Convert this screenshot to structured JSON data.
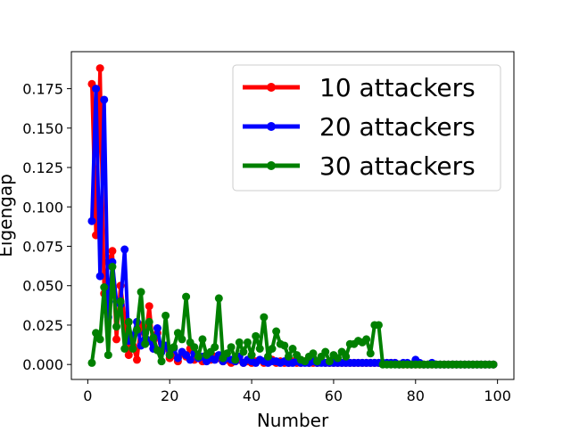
{
  "chart_data": {
    "type": "line",
    "title": "",
    "xlabel": "Number",
    "ylabel": "Eigengap",
    "xlim": [
      -4,
      104
    ],
    "ylim": [
      -0.0095,
      0.1985
    ],
    "xticks": [
      0,
      20,
      40,
      60,
      80,
      100
    ],
    "yticks": [
      0.0,
      0.025,
      0.05,
      0.075,
      0.1,
      0.125,
      0.15,
      0.175
    ],
    "ytick_labels": [
      "0.000",
      "0.025",
      "0.050",
      "0.075",
      "0.100",
      "0.125",
      "0.150",
      "0.175"
    ],
    "grid": false,
    "legend": {
      "position": "top-right"
    },
    "series": [
      {
        "name": "10 attackers",
        "color": "#ff0000",
        "x": [
          1,
          2,
          3,
          4,
          5,
          6,
          7,
          8,
          9,
          10,
          11,
          12,
          13,
          14,
          15,
          16,
          17,
          18,
          19,
          20,
          21,
          22,
          23,
          24,
          25,
          26,
          27,
          28,
          29,
          30,
          31,
          32,
          33,
          34,
          35,
          36,
          37,
          38,
          39,
          40,
          41,
          42,
          43,
          44,
          45,
          46,
          47,
          48,
          49,
          50,
          51,
          52,
          53,
          54,
          55,
          56,
          57,
          58,
          59,
          60,
          61,
          62,
          63,
          64,
          65,
          66,
          67,
          68,
          69,
          70,
          71,
          72,
          73,
          74,
          75,
          76,
          77,
          78,
          79,
          80,
          81,
          82,
          83,
          84,
          85,
          86,
          87,
          88,
          89,
          90,
          91,
          92,
          93,
          94,
          95,
          96,
          97,
          98,
          99
        ],
        "y": [
          0.178,
          0.082,
          0.188,
          0.045,
          0.065,
          0.072,
          0.016,
          0.05,
          0.03,
          0.006,
          0.012,
          0.003,
          0.025,
          0.015,
          0.037,
          0.01,
          0.02,
          0.008,
          0.012,
          0.004,
          0.006,
          0.002,
          0.007,
          0.005,
          0.01,
          0.003,
          0.004,
          0.002,
          0.006,
          0.003,
          0.005,
          0.004,
          0.002,
          0.003,
          0.001,
          0.002,
          0.003,
          0.001,
          0.002,
          0.001,
          0.002,
          0.003,
          0.001,
          0.002,
          0.003,
          0.001,
          0.002,
          0.001,
          0.001,
          0.002,
          0.001,
          0.001,
          0.002,
          0.001,
          0.001,
          0.001,
          0.002,
          0.001,
          0.001,
          0.001,
          0.001,
          0.001,
          0.001,
          0.001,
          0.001,
          0.001,
          0.001,
          0.001,
          0.001,
          0.001,
          0.001,
          0.001,
          0.001,
          0.001,
          0.001,
          0.0,
          0.0,
          0.0,
          0.0,
          0.0,
          0.0,
          0.0,
          0.0,
          0.0,
          0.0,
          0.0,
          0.0,
          0.0,
          0.0,
          0.0,
          0.0,
          0.0,
          0.0,
          0.0,
          0.0,
          0.0,
          0.0,
          0.0,
          0.0
        ]
      },
      {
        "name": "20 attackers",
        "color": "#0000ff",
        "x": [
          1,
          2,
          3,
          4,
          5,
          6,
          7,
          8,
          9,
          10,
          11,
          12,
          13,
          14,
          15,
          16,
          17,
          18,
          19,
          20,
          21,
          22,
          23,
          24,
          25,
          26,
          27,
          28,
          29,
          30,
          31,
          32,
          33,
          34,
          35,
          36,
          37,
          38,
          39,
          40,
          41,
          42,
          43,
          44,
          45,
          46,
          47,
          48,
          49,
          50,
          51,
          52,
          53,
          54,
          55,
          56,
          57,
          58,
          59,
          60,
          61,
          62,
          63,
          64,
          65,
          66,
          67,
          68,
          69,
          70,
          71,
          72,
          73,
          74,
          75,
          76,
          77,
          78,
          79,
          80,
          81,
          82,
          83,
          84,
          85,
          86,
          87,
          88,
          89,
          90,
          91,
          92,
          93,
          94,
          95,
          96,
          97,
          98,
          99
        ],
        "y": [
          0.091,
          0.175,
          0.056,
          0.168,
          0.03,
          0.065,
          0.04,
          0.038,
          0.073,
          0.015,
          0.018,
          0.027,
          0.012,
          0.02,
          0.015,
          0.01,
          0.023,
          0.008,
          0.012,
          0.006,
          0.01,
          0.004,
          0.008,
          0.006,
          0.003,
          0.007,
          0.004,
          0.005,
          0.002,
          0.004,
          0.003,
          0.006,
          0.002,
          0.004,
          0.003,
          0.002,
          0.005,
          0.001,
          0.003,
          0.002,
          0.001,
          0.003,
          0.002,
          0.001,
          0.002,
          0.002,
          0.001,
          0.002,
          0.001,
          0.001,
          0.002,
          0.001,
          0.001,
          0.001,
          0.002,
          0.001,
          0.001,
          0.001,
          0.001,
          0.001,
          0.001,
          0.001,
          0.001,
          0.001,
          0.001,
          0.001,
          0.001,
          0.001,
          0.001,
          0.001,
          0.001,
          0.001,
          0.001,
          0.001,
          0.001,
          0.0,
          0.001,
          0.001,
          0.0,
          0.003,
          0.001,
          0.0,
          0.0,
          0.001,
          0.0,
          0.0,
          0.0,
          0.0,
          0.0,
          0.0,
          0.0,
          0.0,
          0.0,
          0.0,
          0.0,
          0.0,
          0.0,
          0.0,
          0.0
        ]
      },
      {
        "name": "30 attackers",
        "color": "#008000",
        "x": [
          1,
          2,
          3,
          4,
          5,
          6,
          7,
          8,
          9,
          10,
          11,
          12,
          13,
          14,
          15,
          16,
          17,
          18,
          19,
          20,
          21,
          22,
          23,
          24,
          25,
          26,
          27,
          28,
          29,
          30,
          31,
          32,
          33,
          34,
          35,
          36,
          37,
          38,
          39,
          40,
          41,
          42,
          43,
          44,
          45,
          46,
          47,
          48,
          49,
          50,
          51,
          52,
          53,
          54,
          55,
          56,
          57,
          58,
          59,
          60,
          61,
          62,
          63,
          64,
          65,
          66,
          67,
          68,
          69,
          70,
          71,
          72,
          73,
          74,
          75,
          76,
          77,
          78,
          79,
          80,
          81,
          82,
          83,
          84,
          85,
          86,
          87,
          88,
          89,
          90,
          91,
          92,
          93,
          94,
          95,
          96,
          97,
          98,
          99
        ],
        "y": [
          0.001,
          0.02,
          0.016,
          0.049,
          0.006,
          0.062,
          0.024,
          0.04,
          0.01,
          0.027,
          0.01,
          0.022,
          0.046,
          0.013,
          0.027,
          0.017,
          0.009,
          0.002,
          0.031,
          0.006,
          0.011,
          0.02,
          0.016,
          0.043,
          0.014,
          0.011,
          0.005,
          0.016,
          0.006,
          0.008,
          0.011,
          0.042,
          0.004,
          0.007,
          0.011,
          0.003,
          0.014,
          0.008,
          0.014,
          0.006,
          0.018,
          0.01,
          0.03,
          0.005,
          0.01,
          0.021,
          0.013,
          0.012,
          0.005,
          0.01,
          0.006,
          0.003,
          0.002,
          0.005,
          0.007,
          0.002,
          0.005,
          0.008,
          0.002,
          0.006,
          0.004,
          0.008,
          0.005,
          0.013,
          0.013,
          0.015,
          0.014,
          0.016,
          0.007,
          0.025,
          0.025,
          0.0,
          0.0,
          0.0,
          0.0,
          0.0,
          0.0,
          0.0,
          0.0,
          0.0,
          0.0,
          0.0,
          0.0,
          0.0,
          0.0,
          0.0,
          0.0,
          0.0,
          0.0,
          0.0,
          0.0,
          0.0,
          0.0,
          0.0,
          0.0,
          0.0,
          0.0,
          0.0,
          0.0
        ]
      }
    ]
  }
}
